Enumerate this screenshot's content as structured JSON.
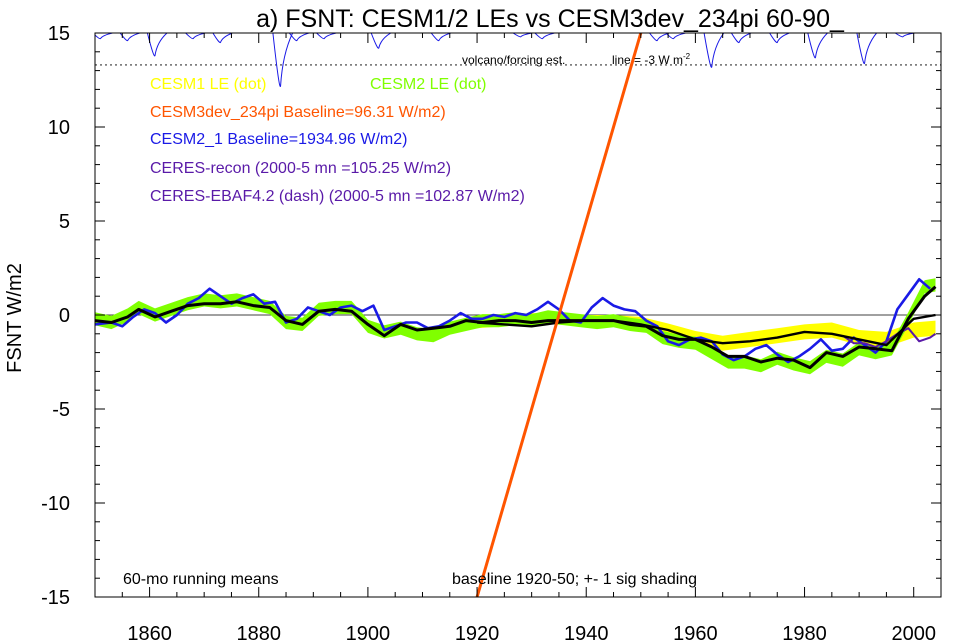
{
  "chart_data": {
    "type": "line",
    "title": "a) FSNT: CESM1/2 LEs vs CESM3dev_234pi 60-90_",
    "ylabel": "FSNT W/m2",
    "xlabel": "",
    "xlim": [
      1850,
      2005
    ],
    "ylim": [
      -15,
      15
    ],
    "x_ticks": [
      1860,
      1880,
      1900,
      1920,
      1940,
      1960,
      1980,
      2000
    ],
    "y_ticks": [
      -15,
      -10,
      -5,
      0,
      5,
      10,
      15
    ],
    "grid": false,
    "legend_placement": "top-left",
    "legend": [
      {
        "label": "CESM1 LE (dot)",
        "color": "#ffff00"
      },
      {
        "label": "CESM2 LE (dot)",
        "color": "#80ff00"
      },
      {
        "label": "CESM3dev_234pi Baseline=96.31 W/m2)",
        "color": "#ff5500"
      },
      {
        "label": "CESM2_1 Baseline=1934.96 W/m2)",
        "color": "#1a1ae6"
      },
      {
        "label": "CERES-recon (2000-5 mn =105.25 W/m2)",
        "color": "#5a1aa8"
      },
      {
        "label": "CERES-EBAF4.2 (dash) (2000-5 mn =102.87 W/m2)",
        "color": "#5a1aa8"
      }
    ],
    "annotations": {
      "volcano": "volcano/forcing est.",
      "line_ref": "line = -3 W m",
      "line_ref_sup": "-2",
      "running_mean": "60-mo running means",
      "baseline_note": "baseline 1920-50; +- 1 sig shading"
    },
    "volcano_reference_y": 13.3,
    "volcano_baseline_y": 15,
    "volcano_dips": [
      {
        "x": 1851,
        "depth": 0.3
      },
      {
        "x": 1856,
        "depth": 0.4
      },
      {
        "x": 1861,
        "depth": 1.2
      },
      {
        "x": 1868,
        "depth": 0.3
      },
      {
        "x": 1873,
        "depth": 0.5
      },
      {
        "x": 1884,
        "depth": 2.8
      },
      {
        "x": 1887,
        "depth": 0.4
      },
      {
        "x": 1892,
        "depth": 0.3
      },
      {
        "x": 1902,
        "depth": 0.8
      },
      {
        "x": 1913,
        "depth": 0.4
      },
      {
        "x": 1928,
        "depth": 0.2
      },
      {
        "x": 1932,
        "depth": 0.3
      },
      {
        "x": 1953,
        "depth": 0.4
      },
      {
        "x": 1956,
        "depth": 0.3
      },
      {
        "x": 1963,
        "depth": 1.8
      },
      {
        "x": 1968,
        "depth": 0.5
      },
      {
        "x": 1975,
        "depth": 0.5
      },
      {
        "x": 1982,
        "depth": 1.3
      },
      {
        "x": 1991,
        "depth": 1.6
      },
      {
        "x": 1998,
        "depth": 0.2
      }
    ],
    "cesm3dev_line": {
      "x": [
        1920,
        1950
      ],
      "y": [
        -15,
        15
      ],
      "color": "#ff5500"
    },
    "cesm1_le": {
      "color": "#ffff00",
      "x": [
        1920,
        1925,
        1930,
        1935,
        1940,
        1945,
        1950,
        1955,
        1960,
        1965,
        1970,
        1975,
        1980,
        1985,
        1990,
        1995,
        2000,
        2004
      ],
      "y": [
        -0.4,
        -0.3,
        -0.2,
        -0.2,
        -0.3,
        -0.3,
        -0.4,
        -0.8,
        -1.2,
        -1.5,
        -1.3,
        -1.1,
        -0.9,
        -0.8,
        -1.2,
        -1.3,
        -0.8,
        -0.7
      ],
      "sig": [
        0.3,
        0.3,
        0.3,
        0.3,
        0.3,
        0.3,
        0.3,
        0.35,
        0.35,
        0.4,
        0.4,
        0.4,
        0.4,
        0.4,
        0.4,
        0.4,
        0.4,
        0.4
      ]
    },
    "cesm2_le": {
      "color": "#80ff00",
      "x": [
        1850,
        1853,
        1856,
        1858,
        1861,
        1864,
        1867,
        1870,
        1873,
        1876,
        1879,
        1882,
        1885,
        1888,
        1891,
        1894,
        1897,
        1900,
        1903,
        1906,
        1909,
        1912,
        1915,
        1918,
        1921,
        1924,
        1927,
        1930,
        1933,
        1936,
        1939,
        1942,
        1945,
        1948,
        1951,
        1954,
        1957,
        1960,
        1963,
        1966,
        1969,
        1972,
        1975,
        1978,
        1981,
        1984,
        1987,
        1990,
        1993,
        1996,
        1999,
        2002,
        2004
      ],
      "y": [
        -0.2,
        -0.4,
        0.0,
        0.4,
        0.0,
        0.3,
        0.6,
        0.8,
        0.7,
        0.8,
        0.6,
        0.4,
        -0.4,
        -0.5,
        0.3,
        0.4,
        0.4,
        -0.6,
        -0.9,
        -0.7,
        -1.0,
        -1.1,
        -0.7,
        -0.5,
        -0.3,
        -0.3,
        -0.2,
        -0.3,
        -0.1,
        -0.2,
        -0.3,
        -0.4,
        -0.3,
        -0.5,
        -0.6,
        -1.2,
        -1.4,
        -1.5,
        -2.0,
        -2.5,
        -2.5,
        -2.7,
        -2.3,
        -2.6,
        -2.8,
        -2.2,
        -2.4,
        -1.8,
        -2.0,
        -1.8,
        -0.2,
        1.5,
        1.6
      ],
      "sig": 0.35
    },
    "cesm2_1": {
      "color": "#1a1ae6",
      "x": [
        1850,
        1853,
        1855,
        1857,
        1859,
        1861,
        1863,
        1865,
        1867,
        1869,
        1871,
        1873,
        1875,
        1877,
        1879,
        1881,
        1883,
        1885,
        1887,
        1889,
        1891,
        1893,
        1895,
        1897,
        1899,
        1901,
        1903,
        1905,
        1907,
        1909,
        1911,
        1913,
        1915,
        1917,
        1919,
        1921,
        1923,
        1925,
        1927,
        1929,
        1931,
        1933,
        1935,
        1937,
        1939,
        1941,
        1943,
        1945,
        1947,
        1949,
        1951,
        1953,
        1955,
        1957,
        1959,
        1961,
        1963,
        1965,
        1967,
        1969,
        1971,
        1973,
        1975,
        1977,
        1979,
        1981,
        1983,
        1985,
        1987,
        1989,
        1991,
        1993,
        1995,
        1997,
        1999,
        2001,
        2003
      ],
      "y": [
        -0.5,
        -0.4,
        -0.6,
        -0.1,
        0.3,
        0.1,
        -0.4,
        0.0,
        0.6,
        0.9,
        1.4,
        1.0,
        0.6,
        0.9,
        1.1,
        0.6,
        0.7,
        -0.4,
        -0.2,
        0.4,
        0.2,
        0.0,
        0.4,
        0.5,
        0.2,
        0.5,
        -0.8,
        -0.6,
        -0.4,
        -0.4,
        -0.7,
        -0.6,
        -0.3,
        0.1,
        -0.2,
        -0.2,
        0.0,
        -0.1,
        0.1,
        0.0,
        0.3,
        0.7,
        0.3,
        -0.3,
        -0.4,
        0.4,
        0.9,
        0.5,
        0.3,
        0.2,
        -0.3,
        -0.6,
        -1.4,
        -1.6,
        -1.3,
        -1.2,
        -1.4,
        -2.1,
        -2.4,
        -2.2,
        -1.8,
        -1.6,
        -2.1,
        -2.5,
        -2.2,
        -1.8,
        -1.3,
        -1.9,
        -1.8,
        -1.2,
        -1.6,
        -2.0,
        -1.4,
        0.3,
        1.1,
        1.9,
        1.4
      ],
      "final": {
        "x": 2004,
        "y": 1.8
      }
    },
    "ensemble_mean": {
      "color": "#000000",
      "x": [
        1850,
        1853,
        1856,
        1858,
        1861,
        1864,
        1867,
        1870,
        1873,
        1876,
        1879,
        1882,
        1885,
        1888,
        1891,
        1894,
        1897,
        1900,
        1903,
        1906,
        1909,
        1912,
        1915,
        1918,
        1921,
        1924,
        1927,
        1930,
        1933,
        1936,
        1939,
        1942,
        1945,
        1948,
        1951,
        1954,
        1957,
        1960,
        1963,
        1966,
        1969,
        1972,
        1975,
        1978,
        1981,
        1984,
        1987,
        1990,
        1993,
        1996,
        1999,
        2002,
        2004
      ],
      "y": [
        -0.3,
        -0.4,
        -0.1,
        0.3,
        -0.1,
        0.2,
        0.5,
        0.6,
        0.6,
        0.7,
        0.5,
        0.4,
        -0.3,
        -0.5,
        0.2,
        0.3,
        0.2,
        -0.5,
        -1.1,
        -0.5,
        -0.8,
        -0.7,
        -0.6,
        -0.3,
        -0.4,
        -0.3,
        -0.3,
        -0.4,
        -0.3,
        -0.3,
        -0.3,
        -0.3,
        -0.3,
        -0.5,
        -0.6,
        -1.1,
        -1.3,
        -1.3,
        -1.7,
        -2.2,
        -2.2,
        -2.5,
        -2.3,
        -2.4,
        -2.8,
        -2.0,
        -2.2,
        -1.7,
        -1.8,
        -1.9,
        -0.2,
        1.0,
        1.5
      ]
    },
    "ensemble_mean_cesm1": {
      "color": "#000000",
      "x": [
        1920,
        1925,
        1930,
        1935,
        1940,
        1945,
        1950,
        1955,
        1960,
        1965,
        1970,
        1975,
        1980,
        1985,
        1990,
        1995,
        2000,
        2004
      ],
      "y": [
        -0.4,
        -0.5,
        -0.6,
        -0.4,
        -0.3,
        -0.3,
        -0.5,
        -0.8,
        -1.3,
        -1.5,
        -1.4,
        -1.2,
        -0.9,
        -1.0,
        -1.3,
        -1.6,
        -0.2,
        0.0
      ]
    },
    "ceres_recon": {
      "color": "#5a1aa8",
      "x": [
        1987,
        1989,
        1991,
        1993,
        1995,
        1997,
        1999,
        2001,
        2003,
        2004
      ],
      "y": [
        -1.1,
        -1.5,
        -1.5,
        -1.7,
        -1.4,
        -1.0,
        -0.7,
        -1.4,
        -1.2,
        -1.0
      ]
    }
  }
}
